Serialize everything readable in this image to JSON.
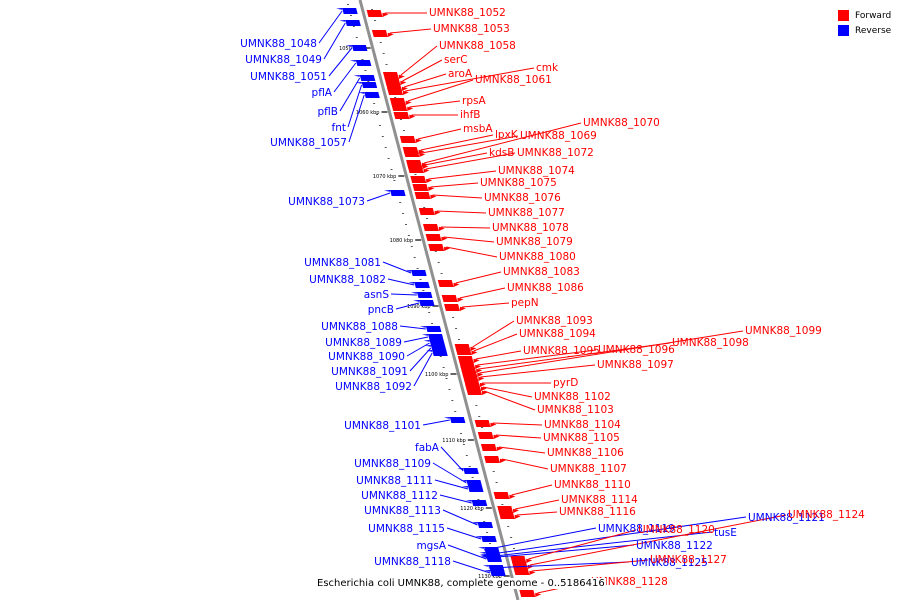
{
  "legend": {
    "forward": {
      "label": "Forward",
      "color": "#ff0000"
    },
    "reverse": {
      "label": "Reverse",
      "color": "#0000ff"
    }
  },
  "caption": "Escherichia coli UMNK88, complete genome - 0..5186416",
  "scale_labels": [
    "1050 kbp",
    "1060 kbp",
    "1070 kbp",
    "1080 kbp",
    "1090 kbp",
    "1100 kbp",
    "1110 kbp",
    "1120 kbp",
    "1130 kbp"
  ],
  "genes_reverse": [
    "UMNK88_1048",
    "UMNK88_1049",
    "UMNK88_1051",
    "pflA",
    "pflB",
    "fnt",
    "UMNK88_1057",
    "UMNK88_1073",
    "UMNK88_1081",
    "UMNK88_1082",
    "asnS",
    "pncB",
    "UMNK88_1088",
    "UMNK88_1089",
    "UMNK88_1090",
    "UMNK88_1091",
    "UMNK88_1092",
    "UMNK88_1101",
    "fabA",
    "UMNK88_1109",
    "UMNK88_1111",
    "UMNK88_1112",
    "UMNK88_1113",
    "UMNK88_1115",
    "mgsA",
    "UMNK88_1118",
    "UMNK88_1119",
    "UMNK88_1122",
    "UMNK88_1125",
    "UMNK88_1121",
    "tusE"
  ],
  "genes_forward": [
    "UMNK88_1052",
    "UMNK88_1053",
    "UMNK88_1058",
    "serC",
    "aroA",
    "cmk",
    "UMNK88_1061",
    "rpsA",
    "ihfB",
    "msbA",
    "lpxK",
    "UMNK88_1069",
    "UMNK88_1070",
    "kdsB",
    "UMNK88_1072",
    "UMNK88_1074",
    "UMNK88_1075",
    "UMNK88_1076",
    "UMNK88_1077",
    "UMNK88_1078",
    "UMNK88_1079",
    "UMNK88_1080",
    "UMNK88_1083",
    "UMNK88_1086",
    "pepN",
    "UMNK88_1093",
    "UMNK88_1094",
    "UMNK88_1095",
    "UMNK88_1096",
    "UMNK88_1098",
    "UMNK88_1099",
    "UMNK88_1097",
    "pyrD",
    "UMNK88_1102",
    "UMNK88_1103",
    "UMNK88_1104",
    "UMNK88_1105",
    "UMNK88_1106",
    "UMNK88_1107",
    "UMNK88_1110",
    "UMNK88_1114",
    "UMNK88_1116",
    "UMNK88_1120",
    "UMNK88_1124",
    "UMNK88_1127",
    "UMNK88_1128"
  ]
}
